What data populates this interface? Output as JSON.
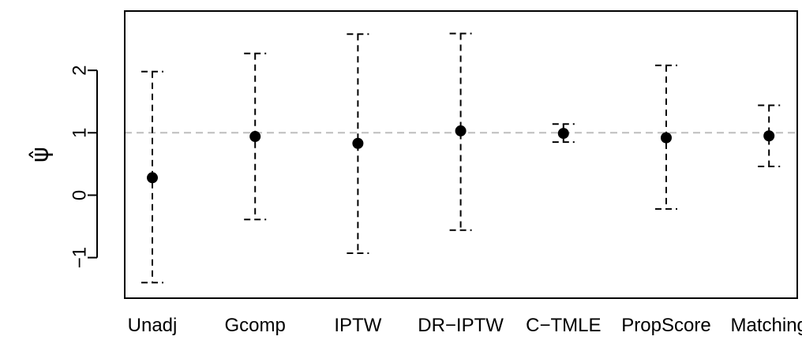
{
  "chart_data": {
    "type": "scatter",
    "subtype": "point-estimate-with-interval",
    "title": "",
    "xlabel": "",
    "ylabel": "ψ̂",
    "categories": [
      "Unadj",
      "Gcomp",
      "IPTW",
      "DR−IPTW",
      "C−TMLE",
      "PropScore",
      "Matching"
    ],
    "estimates": [
      0.28,
      0.94,
      0.83,
      1.03,
      0.99,
      0.92,
      0.95
    ],
    "lower": [
      -1.4,
      -0.39,
      -0.93,
      -0.56,
      0.85,
      -0.22,
      0.46
    ],
    "upper": [
      1.98,
      2.27,
      2.58,
      2.59,
      1.14,
      2.08,
      1.44
    ],
    "reference_line": 1,
    "ylim": [
      -1.65,
      2.95
    ],
    "yticks": [
      -1,
      0,
      1,
      2
    ],
    "ytick_labels": [
      "−1",
      "0",
      "1",
      "2"
    ],
    "grid": false,
    "legend": "none",
    "colors": {
      "points": "#000000",
      "intervals": "#000000",
      "reference_line": "#bebebe",
      "frame": "#000000",
      "background": "#ffffff"
    }
  }
}
